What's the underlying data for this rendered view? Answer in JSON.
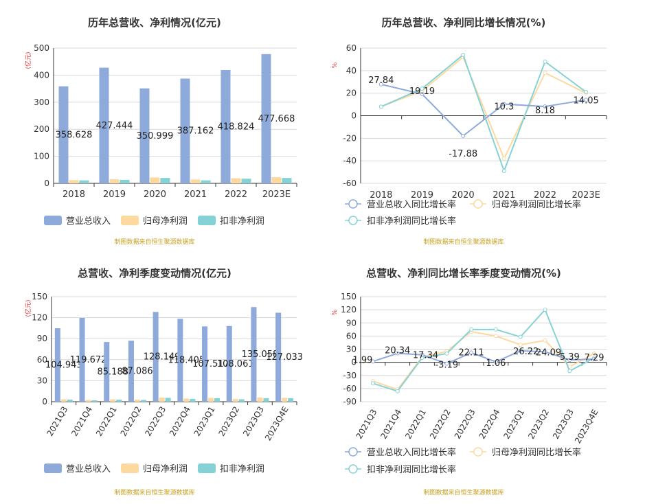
{
  "legend_labels": {
    "revenue": "营业总收入",
    "net_profit": "归母净利润",
    "deducted_profit": "扣非净利润",
    "revenue_growth": "营业总收入同比增长率",
    "net_profit_growth": "归母净利润同比增长率",
    "deducted_profit_growth": "扣非净利润同比增长率"
  },
  "source_note": "制图数据来自恒生聚源数据库",
  "colors": {
    "revenue": "#8eaadb",
    "net_profit": "#fdd9a0",
    "deducted_profit": "#85d2d6",
    "revenue_line": "#8eaadb",
    "net_profit_line": "#fdd9a0",
    "deducted_line": "#85d2d6",
    "unit_label": "#e03030",
    "source": "#c8a020"
  },
  "chart_data": [
    {
      "type": "bar",
      "title": "历年总营收、净利情况(亿元)",
      "ylabel": "(亿元)",
      "ylim": [
        0,
        500
      ],
      "yticks": [
        0,
        100,
        200,
        300,
        400,
        500
      ],
      "categories": [
        "2018",
        "2019",
        "2020",
        "2021",
        "2022",
        "2023E"
      ],
      "series": [
        {
          "name": "营业总收入",
          "values": [
            358.628,
            427.444,
            350.999,
            387.162,
            418.824,
            477.668
          ]
        },
        {
          "name": "归母净利润",
          "values": [
            12,
            15,
            22,
            14,
            19,
            23
          ]
        },
        {
          "name": "扣非净利润",
          "values": [
            11,
            13,
            20,
            11,
            17,
            20
          ]
        }
      ],
      "data_labels": [
        "358.628",
        "427.444",
        "350.999",
        "387.162",
        "418.824",
        "477.668"
      ],
      "legend": "bottom",
      "grid": true
    },
    {
      "type": "line",
      "title": "历年总营收、净利同比增长情况(%)",
      "ylabel": "%",
      "ylim": [
        -60,
        60
      ],
      "yticks": [
        -60,
        -40,
        -20,
        0,
        20,
        40,
        60
      ],
      "categories": [
        "2018",
        "2019",
        "2020",
        "2021",
        "2022",
        "2023E"
      ],
      "series": [
        {
          "name": "营业总收入同比增长率",
          "values": [
            27.84,
            19.19,
            -17.88,
            10.3,
            8.18,
            14.05
          ]
        },
        {
          "name": "归母净利润同比增长率",
          "values": [
            8,
            22,
            52,
            -38,
            38,
            20
          ]
        },
        {
          "name": "扣非净利润同比增长率",
          "values": [
            8,
            24,
            54,
            -49,
            48,
            21
          ]
        }
      ],
      "data_labels": [
        "27.84",
        "19.19",
        "-17.88",
        "10.3",
        "8.18",
        "14.05"
      ],
      "legend": "bottom",
      "grid": true
    },
    {
      "type": "bar",
      "title": "总营收、净利季度变动情况(亿元)",
      "ylabel": "(亿元)",
      "ylim": [
        0,
        150
      ],
      "yticks": [
        0,
        30,
        60,
        90,
        120,
        150
      ],
      "categories": [
        "2021Q3",
        "2021Q4",
        "2022Q1",
        "2022Q2",
        "2022Q3",
        "2022Q4",
        "2023Q1",
        "2023Q2",
        "2023Q3",
        "2023Q4E"
      ],
      "series": [
        {
          "name": "营业总收入",
          "values": [
            104.943,
            119.672,
            85.188,
            87.086,
            128.149,
            118.405,
            107.517,
            108.061,
            135.058,
            127.033
          ]
        },
        {
          "name": "归母净利润",
          "values": [
            3.5,
            2.5,
            3.5,
            3.0,
            6.0,
            4.5,
            5.5,
            4.0,
            6.0,
            5.5
          ]
        },
        {
          "name": "扣非净利润",
          "values": [
            3.0,
            2.0,
            3.0,
            2.5,
            5.5,
            4.0,
            5.0,
            3.5,
            5.0,
            5.0
          ]
        }
      ],
      "data_labels": [
        "104.943",
        "119.672",
        "85.188",
        "87.086",
        "128.149",
        "118.405",
        "107.517",
        "108.061",
        "135.058",
        "127.033"
      ],
      "legend": "bottom",
      "grid": true
    },
    {
      "type": "line",
      "title": "总营收、净利同比增长率季度变动情况(%)",
      "ylabel": "%",
      "ylim": [
        -90,
        150
      ],
      "yticks": [
        -90,
        -60,
        -30,
        0,
        30,
        60,
        90,
        120,
        150
      ],
      "categories": [
        "2021Q3",
        "2021Q4",
        "2022Q1",
        "2022Q2",
        "2022Q3",
        "2022Q4",
        "2023Q1",
        "2023Q2",
        "2023Q3",
        "2023Q4E"
      ],
      "series": [
        {
          "name": "营业总收入同比增长率",
          "values": [
            1.99,
            20.34,
            17.34,
            -3.19,
            22.11,
            1.06,
            26.22,
            24.09,
            5.39,
            7.29
          ]
        },
        {
          "name": "归母净利润同比增长率",
          "values": [
            -43,
            -62,
            12,
            25,
            70,
            60,
            40,
            50,
            -10,
            20
          ]
        },
        {
          "name": "扣非净利润同比增长率",
          "values": [
            -48,
            -66,
            10,
            20,
            75,
            75,
            58,
            120,
            -20,
            10
          ]
        }
      ],
      "data_labels": [
        "1.99",
        "20.34",
        "17.34",
        "-3.19",
        "22.11",
        "1.06",
        "26.22",
        "24.09",
        "5.39",
        "7.29"
      ],
      "legend": "bottom",
      "grid": true
    }
  ]
}
